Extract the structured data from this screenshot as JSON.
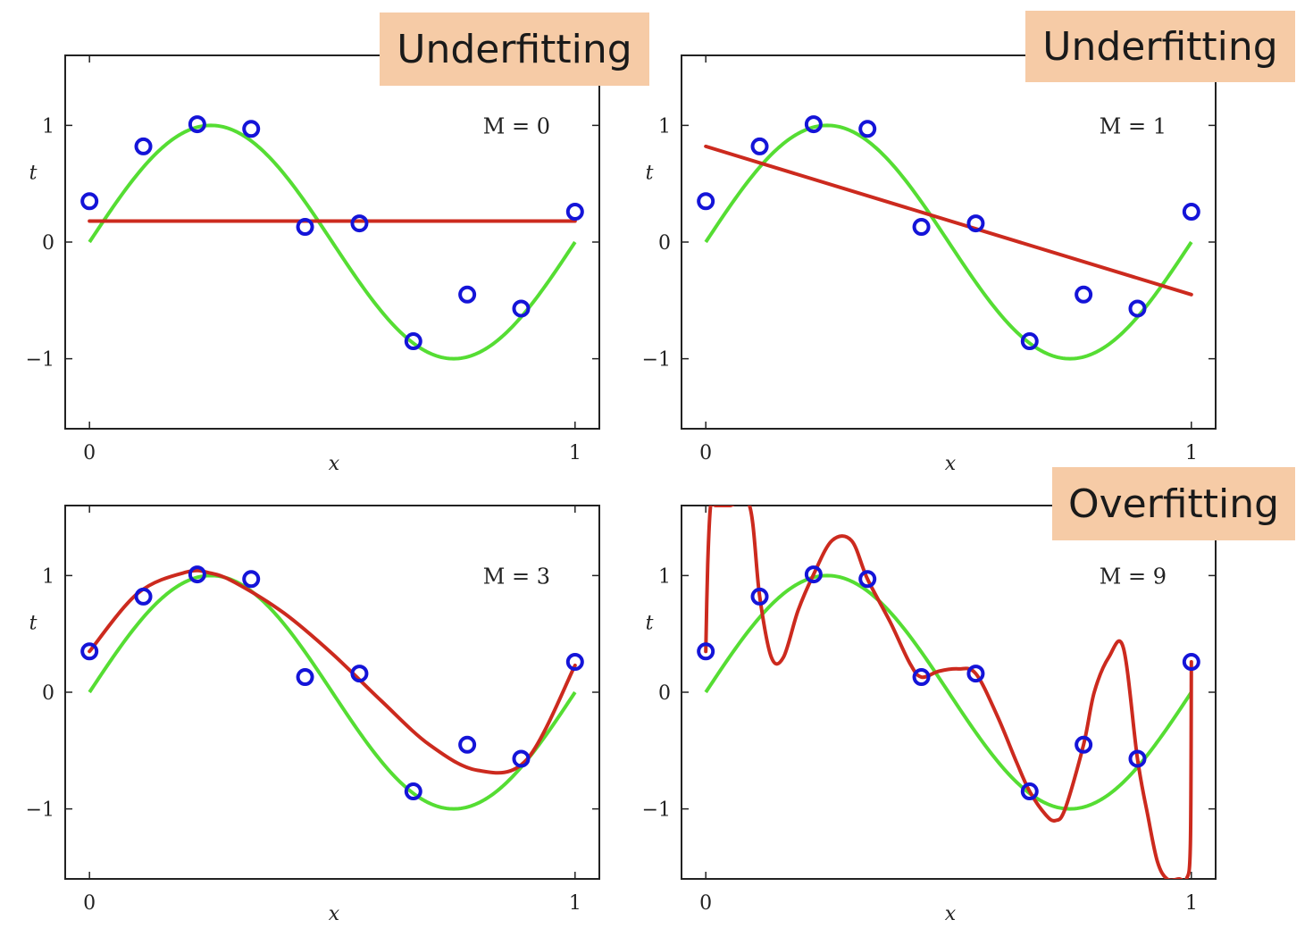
{
  "chart_data": [
    {
      "type": "line",
      "badge": "Underfitting",
      "order_label": "M = 0",
      "order": 0,
      "xlabel": "x",
      "ylabel": "t",
      "xlim": [
        -0.05,
        1.05
      ],
      "ylim": [
        -1.6,
        1.6
      ],
      "xticks": [
        0,
        1
      ],
      "yticks": [
        -1,
        0,
        1
      ],
      "data_points": {
        "x": [
          0,
          0.111,
          0.222,
          0.333,
          0.444,
          0.556,
          0.667,
          0.778,
          0.889,
          1.0
        ],
        "t": [
          0.35,
          0.82,
          1.01,
          0.97,
          0.13,
          0.16,
          -0.85,
          -0.45,
          -0.57,
          0.26
        ]
      },
      "series": [
        {
          "role": "true-function",
          "color": "#55dd33",
          "function": "sin(2*pi*x)"
        },
        {
          "role": "fitted-polynomial",
          "color": "#cc2a1e",
          "x": [
            0,
            1
          ],
          "y": [
            0.18,
            0.18
          ]
        }
      ]
    },
    {
      "type": "line",
      "badge": "Underfitting",
      "order_label": "M = 1",
      "order": 1,
      "xlabel": "x",
      "ylabel": "t",
      "xlim": [
        -0.05,
        1.05
      ],
      "ylim": [
        -1.6,
        1.6
      ],
      "xticks": [
        0,
        1
      ],
      "yticks": [
        -1,
        0,
        1
      ],
      "data_points": {
        "x": [
          0,
          0.111,
          0.222,
          0.333,
          0.444,
          0.556,
          0.667,
          0.778,
          0.889,
          1.0
        ],
        "t": [
          0.35,
          0.82,
          1.01,
          0.97,
          0.13,
          0.16,
          -0.85,
          -0.45,
          -0.57,
          0.26
        ]
      },
      "series": [
        {
          "role": "true-function",
          "color": "#55dd33",
          "function": "sin(2*pi*x)"
        },
        {
          "role": "fitted-polynomial",
          "color": "#cc2a1e",
          "x": [
            0,
            1
          ],
          "y": [
            0.82,
            -0.45
          ]
        }
      ]
    },
    {
      "type": "line",
      "badge": "",
      "order_label": "M = 3",
      "order": 3,
      "xlabel": "x",
      "ylabel": "t",
      "xlim": [
        -0.05,
        1.05
      ],
      "ylim": [
        -1.6,
        1.6
      ],
      "xticks": [
        0,
        1
      ],
      "yticks": [
        -1,
        0,
        1
      ],
      "data_points": {
        "x": [
          0,
          0.111,
          0.222,
          0.333,
          0.444,
          0.556,
          0.667,
          0.778,
          0.889,
          1.0
        ],
        "t": [
          0.35,
          0.82,
          1.01,
          0.97,
          0.13,
          0.16,
          -0.85,
          -0.45,
          -0.57,
          0.26
        ]
      },
      "series": [
        {
          "role": "true-function",
          "color": "#55dd33",
          "function": "sin(2*pi*x)"
        },
        {
          "role": "fitted-polynomial",
          "color": "#cc2a1e",
          "x": [
            0,
            0.1,
            0.2,
            0.25,
            0.3,
            0.4,
            0.5,
            0.6,
            0.7,
            0.8,
            0.9,
            1.0
          ],
          "y": [
            0.35,
            0.85,
            1.03,
            1.02,
            0.94,
            0.68,
            0.33,
            -0.07,
            -0.45,
            -0.67,
            -0.58,
            0.23
          ]
        }
      ]
    },
    {
      "type": "line",
      "badge": "Overfitting",
      "order_label": "M = 9",
      "order": 9,
      "xlabel": "x",
      "ylabel": "t",
      "xlim": [
        -0.05,
        1.05
      ],
      "ylim": [
        -1.6,
        1.6
      ],
      "xticks": [
        0,
        1
      ],
      "yticks": [
        -1,
        0,
        1
      ],
      "data_points": {
        "x": [
          0,
          0.111,
          0.222,
          0.333,
          0.444,
          0.556,
          0.667,
          0.778,
          0.889,
          1.0
        ],
        "t": [
          0.35,
          0.82,
          1.01,
          0.97,
          0.13,
          0.16,
          -0.85,
          -0.45,
          -0.57,
          0.26
        ]
      },
      "series": [
        {
          "role": "true-function",
          "color": "#55dd33",
          "function": "sin(2*pi*x)"
        },
        {
          "role": "fitted-polynomial",
          "color": "#cc2a1e",
          "x": [
            0,
            0.004,
            0.01,
            0.02,
            0.05,
            0.09,
            0.111,
            0.135,
            0.16,
            0.19,
            0.222,
            0.26,
            0.3,
            0.333,
            0.38,
            0.42,
            0.444,
            0.48,
            0.52,
            0.556,
            0.6,
            0.64,
            0.667,
            0.7,
            0.72,
            0.74,
            0.778,
            0.8,
            0.83,
            0.86,
            0.889,
            0.91,
            0.93,
            0.95,
            0.975,
            0.99,
            0.998,
            1.0
          ],
          "y": [
            0.35,
            1.1,
            1.6,
            1.6,
            1.6,
            1.6,
            0.82,
            0.3,
            0.3,
            0.7,
            1.01,
            1.3,
            1.3,
            0.97,
            0.6,
            0.25,
            0.13,
            0.18,
            0.2,
            0.16,
            -0.2,
            -0.6,
            -0.85,
            -1.05,
            -1.1,
            -1.0,
            -0.45,
            0.0,
            0.3,
            0.38,
            -0.57,
            -1.05,
            -1.45,
            -1.6,
            -1.6,
            -1.6,
            -1.3,
            0.26
          ]
        }
      ]
    }
  ]
}
